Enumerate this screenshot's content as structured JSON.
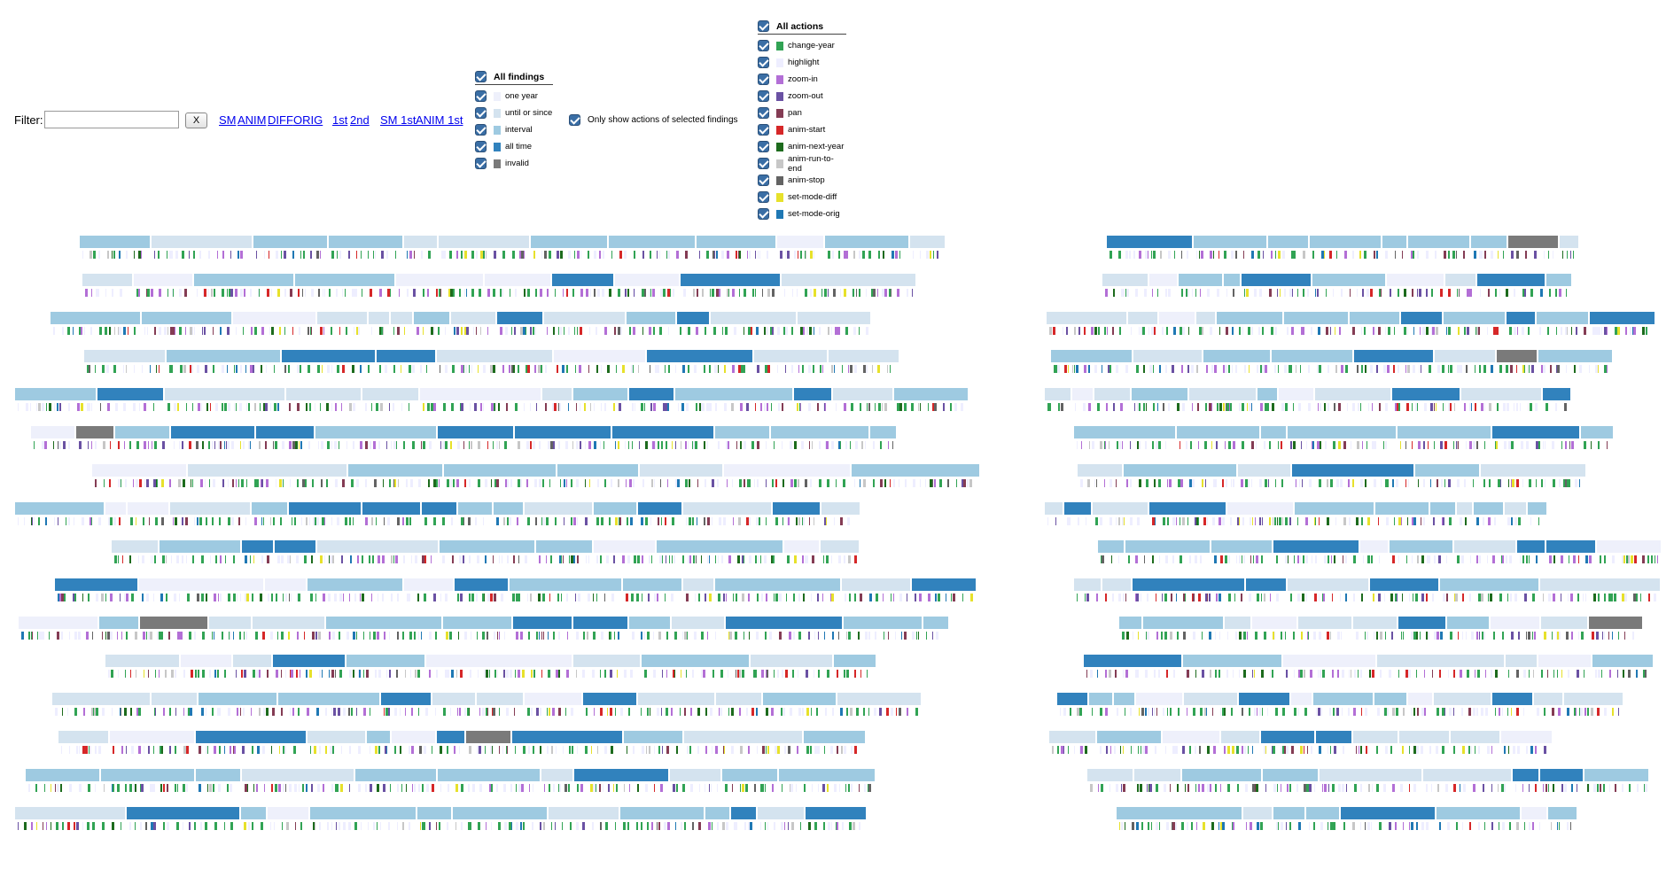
{
  "filter": {
    "label": "Filter:",
    "value": "",
    "placeholder": "",
    "clear_label": "X"
  },
  "links": [
    "SM",
    "ANIM",
    "DIFF",
    "ORIG",
    "1st",
    "2nd",
    "SM 1st",
    "ANIM 1st"
  ],
  "findings_legend": {
    "title": "All findings",
    "checked": true,
    "items": [
      {
        "label": "one year",
        "color": "#eef0fb",
        "checked": true
      },
      {
        "label": "until or since",
        "color": "#d4e3ef",
        "checked": true
      },
      {
        "label": "interval",
        "color": "#9ecae1",
        "checked": true
      },
      {
        "label": "all time",
        "color": "#3182bd",
        "checked": true
      },
      {
        "label": "invalid",
        "color": "#7a7a7a",
        "checked": true
      }
    ]
  },
  "only_actions": {
    "label": "Only show actions of selected findings",
    "checked": true
  },
  "actions_legend": {
    "title": "All actions",
    "checked": true,
    "items": [
      {
        "label": "change-year",
        "color": "#31a354",
        "checked": true
      },
      {
        "label": "highlight",
        "color": "#eeeeff",
        "checked": true
      },
      {
        "label": "zoom-in",
        "color": "#b36fd6",
        "checked": true
      },
      {
        "label": "zoom-out",
        "color": "#6a51a3",
        "checked": true
      },
      {
        "label": "pan",
        "color": "#843c54",
        "checked": true
      },
      {
        "label": "anim-start",
        "color": "#d62728",
        "checked": true
      },
      {
        "label": "anim-next-year",
        "color": "#1d6b1d",
        "checked": true
      },
      {
        "label": "anim-run-to-end",
        "color": "#c7c7c7",
        "checked": true
      },
      {
        "label": "anim-stop",
        "color": "#636363",
        "checked": true
      },
      {
        "label": "set-mode-diff",
        "color": "#e7e12b",
        "checked": true
      },
      {
        "label": "set-mode-orig",
        "color": "#1f78b4",
        "checked": true
      }
    ]
  },
  "timeline": {
    "sessions": 16,
    "split_groups": [
      "left",
      "right"
    ],
    "left_segment_counts": [
      12,
      10,
      14,
      9,
      13,
      12,
      8,
      16,
      11,
      12,
      14,
      10,
      13,
      12,
      11,
      13
    ],
    "right_segment_counts": [
      9,
      10,
      12,
      8,
      11,
      7,
      6,
      12,
      10,
      8,
      11,
      7,
      14,
      10,
      9,
      8
    ]
  }
}
